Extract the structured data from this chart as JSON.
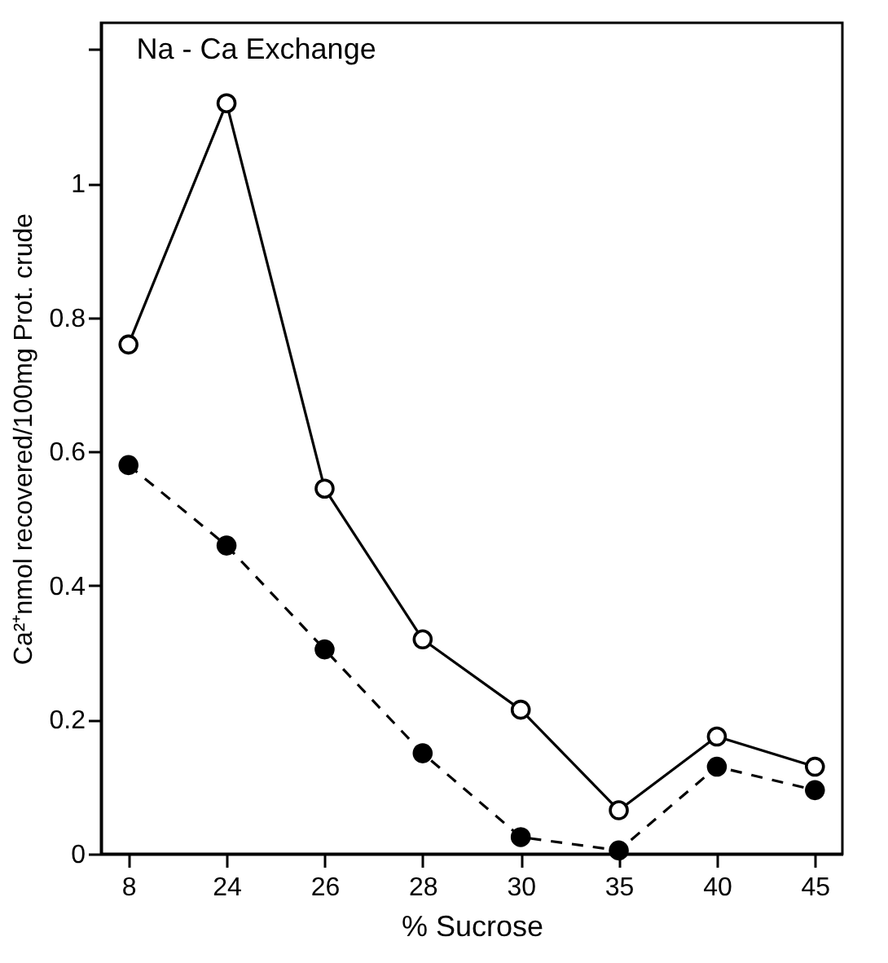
{
  "chart_data": {
    "type": "line",
    "title": "Na - Ca Exchange",
    "xlabel": "% Sucrose",
    "ylabel": "Ca²⁺nmol recovered/100mg Prot. crude",
    "categories": [
      "8",
      "24",
      "26",
      "28",
      "30",
      "35",
      "40",
      "45"
    ],
    "series": [
      {
        "color": "#000000",
        "line_style": "solid",
        "values": [
          0.76,
          1.12,
          0.545,
          0.32,
          0.215,
          0.065,
          0.175,
          0.13
        ]
      },
      {
        "color": "#000000",
        "line_style": "dashed",
        "values": [
          0.58,
          0.46,
          0.305,
          0.15,
          0.025,
          0.005,
          0.13,
          0.095
        ]
      }
    ],
    "ylim": [
      0,
      1.24
    ],
    "yticks": [
      0,
      0.2,
      0.4,
      0.6,
      0.8,
      1.0,
      {
        "value": 1.2,
        "label": null
      }
    ],
    "marker": "circle",
    "grid": false
  }
}
